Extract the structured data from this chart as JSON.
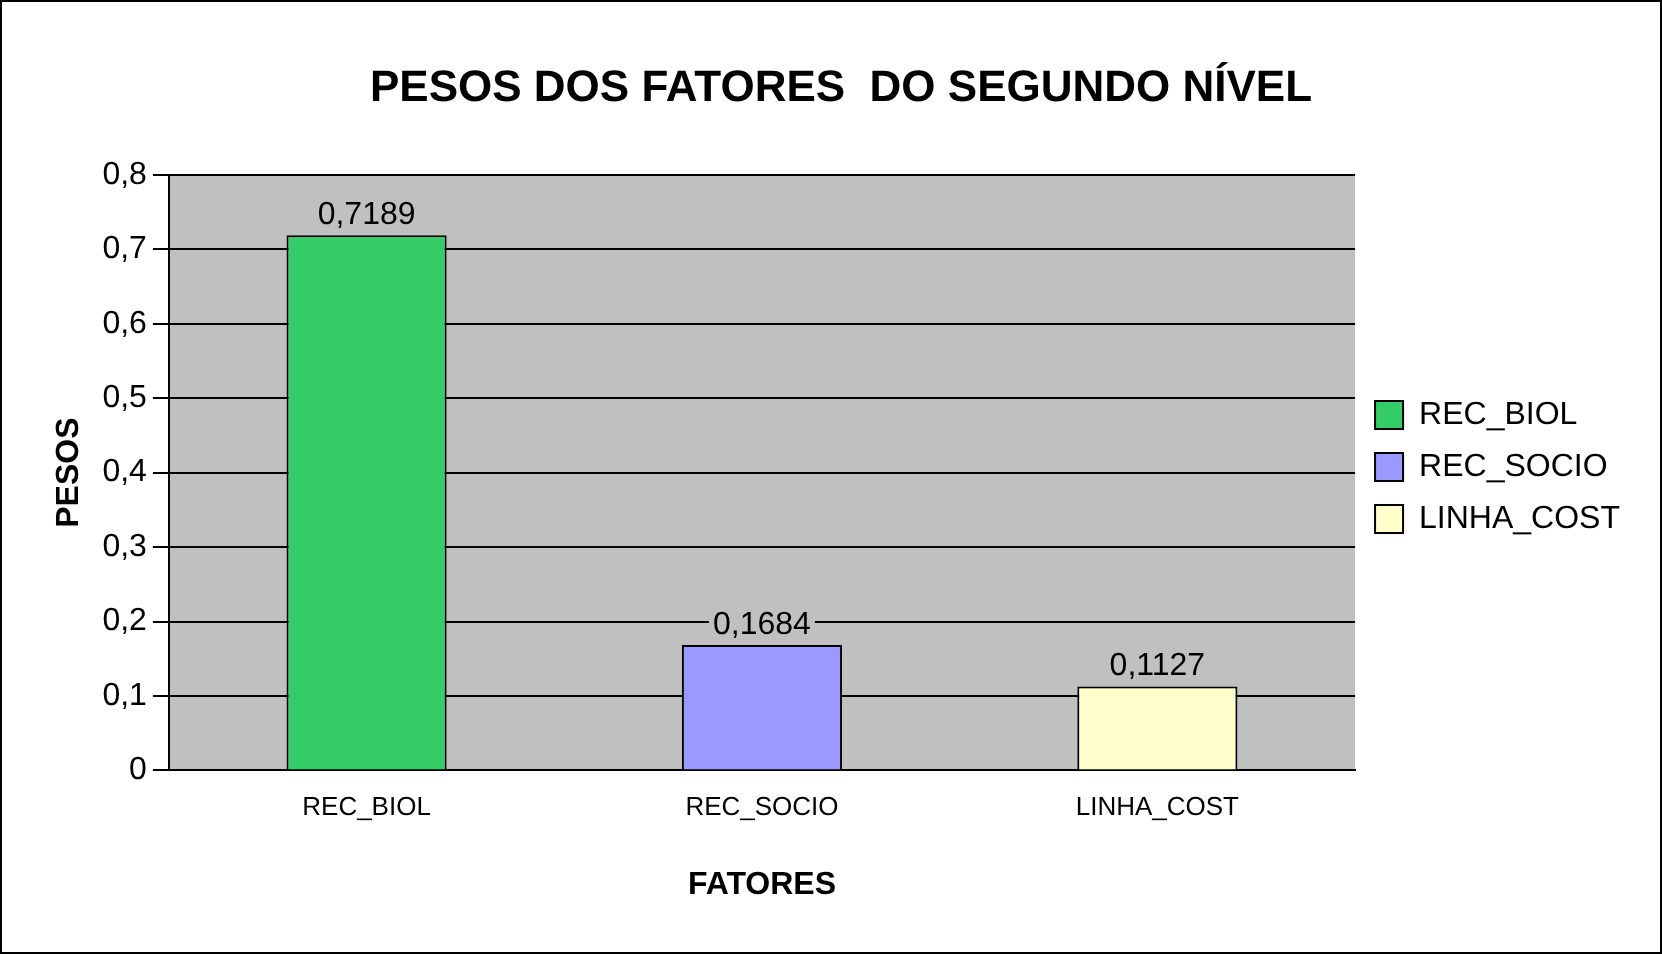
{
  "chart_data": {
    "type": "bar",
    "title": "PESOS DOS FATORES  DO SEGUNDO NÍVEL",
    "xlabel": "FATORES",
    "ylabel": "PESOS",
    "categories": [
      "REC_BIOL",
      "REC_SOCIO",
      "LINHA_COST"
    ],
    "series": [
      {
        "name": "REC_BIOL",
        "color": "#33cc66",
        "values": [
          0.7189,
          null,
          null
        ],
        "value_labels": [
          "0,7189",
          null,
          null
        ]
      },
      {
        "name": "REC_SOCIO",
        "color": "#9999ff",
        "values": [
          null,
          0.1684,
          null
        ],
        "value_labels": [
          null,
          "0,1684",
          null
        ]
      },
      {
        "name": "LINHA_COST",
        "color": "#ffffcc",
        "values": [
          null,
          null,
          0.1127
        ],
        "value_labels": [
          null,
          null,
          "0,1127"
        ]
      }
    ],
    "ylim": [
      0,
      0.8
    ],
    "yticks": [
      0,
      {
        "value": 0.1,
        "label": "0,1"
      },
      {
        "value": 0.2,
        "label": "0,2"
      },
      {
        "value": 0.3,
        "label": "0,3"
      },
      {
        "value": 0.4,
        "label": "0,4"
      },
      {
        "value": 0.5,
        "label": "0,5"
      },
      {
        "value": 0.6,
        "label": "0,6"
      },
      {
        "value": 0.7,
        "label": "0,7"
      },
      {
        "value": 0.8,
        "label": "0,8"
      }
    ],
    "grid": "y",
    "legend": "right"
  }
}
